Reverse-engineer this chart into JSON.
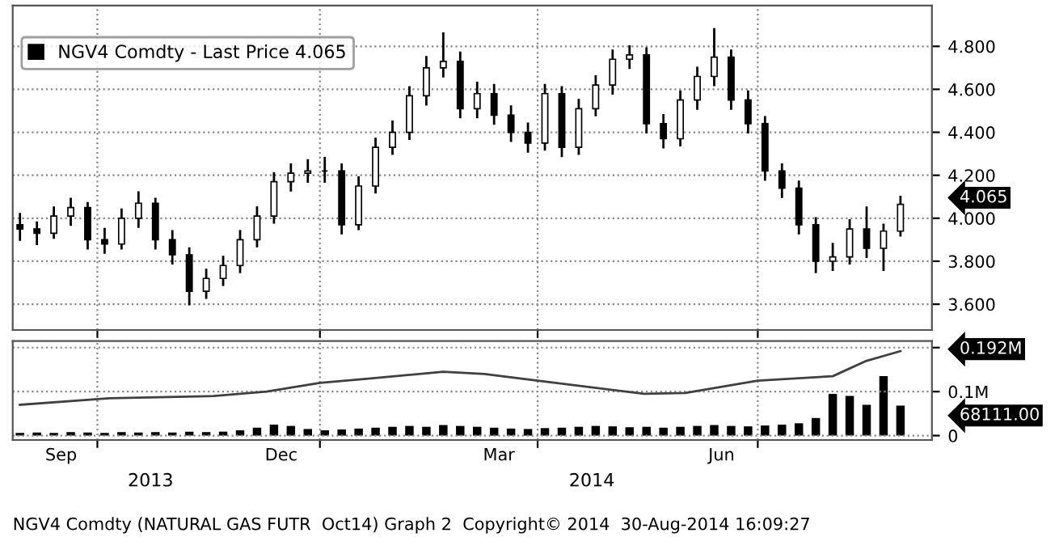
{
  "chart_data": [
    {
      "type": "candlestick",
      "legend": "top left",
      "grid": true,
      "tick_labels": "y",
      "x": [
        "2013-08-30",
        "2013-09-06",
        "2013-09-13",
        "2013-09-20",
        "2013-09-27",
        "2013-10-04",
        "2013-10-11",
        "2013-10-18",
        "2013-10-25",
        "2013-11-01",
        "2013-11-08",
        "2013-11-15",
        "2013-11-22",
        "2013-11-29",
        "2013-12-06",
        "2013-12-13",
        "2013-12-20",
        "2013-12-27",
        "2014-01-03",
        "2014-01-10",
        "2014-01-17",
        "2014-01-24",
        "2014-01-31",
        "2014-02-07",
        "2014-02-14",
        "2014-02-21",
        "2014-02-28",
        "2014-03-07",
        "2014-03-14",
        "2014-03-21",
        "2014-03-28",
        "2014-04-04",
        "2014-04-11",
        "2014-04-18",
        "2014-04-25",
        "2014-05-02",
        "2014-05-09",
        "2014-05-16",
        "2014-05-23",
        "2014-05-30",
        "2014-06-06",
        "2014-06-13",
        "2014-06-20",
        "2014-06-27",
        "2014-07-04",
        "2014-07-11",
        "2014-07-18",
        "2014-07-25",
        "2014-08-01",
        "2014-08-08",
        "2014-08-15",
        "2014-08-22",
        "2014-08-29"
      ],
      "series": [
        {
          "name": "NGV4 Comdty - Last Price 4.065",
          "color": "#000000",
          "ohlc": [
            [
              3.97,
              4.02,
              3.9,
              3.95
            ],
            [
              3.95,
              3.98,
              3.88,
              3.93
            ],
            [
              3.93,
              4.05,
              3.91,
              4.01
            ],
            [
              4.01,
              4.09,
              3.97,
              4.05
            ],
            [
              4.05,
              4.07,
              3.86,
              3.9
            ],
            [
              3.9,
              3.95,
              3.84,
              3.88
            ],
            [
              3.88,
              4.04,
              3.86,
              4.0
            ],
            [
              4.0,
              4.12,
              3.96,
              4.07
            ],
            [
              4.07,
              4.09,
              3.86,
              3.9
            ],
            [
              3.9,
              3.94,
              3.79,
              3.83
            ],
            [
              3.83,
              3.86,
              3.6,
              3.66
            ],
            [
              3.66,
              3.76,
              3.63,
              3.72
            ],
            [
              3.72,
              3.82,
              3.69,
              3.78
            ],
            [
              3.78,
              3.94,
              3.75,
              3.9
            ],
            [
              3.9,
              4.05,
              3.87,
              4.01
            ],
            [
              4.01,
              4.21,
              3.98,
              4.17
            ],
            [
              4.17,
              4.25,
              4.13,
              4.21
            ],
            [
              4.21,
              4.27,
              4.17,
              4.22
            ],
            [
              4.22,
              4.28,
              4.17,
              4.22
            ],
            [
              4.22,
              4.25,
              3.93,
              3.97
            ],
            [
              3.97,
              4.19,
              3.95,
              4.15
            ],
            [
              4.15,
              4.37,
              4.12,
              4.33
            ],
            [
              4.33,
              4.45,
              4.3,
              4.4
            ],
            [
              4.4,
              4.61,
              4.37,
              4.57
            ],
            [
              4.57,
              4.75,
              4.53,
              4.7
            ],
            [
              4.7,
              4.86,
              4.66,
              4.73
            ],
            [
              4.73,
              4.77,
              4.47,
              4.51
            ],
            [
              4.51,
              4.63,
              4.47,
              4.58
            ],
            [
              4.58,
              4.62,
              4.44,
              4.48
            ],
            [
              4.48,
              4.52,
              4.36,
              4.4
            ],
            [
              4.4,
              4.44,
              4.31,
              4.35
            ],
            [
              4.35,
              4.62,
              4.32,
              4.58
            ],
            [
              4.58,
              4.61,
              4.29,
              4.33
            ],
            [
              4.33,
              4.55,
              4.3,
              4.51
            ],
            [
              4.51,
              4.66,
              4.48,
              4.62
            ],
            [
              4.62,
              4.78,
              4.58,
              4.74
            ],
            [
              4.74,
              4.8,
              4.7,
              4.76
            ],
            [
              4.76,
              4.79,
              4.4,
              4.44
            ],
            [
              4.44,
              4.48,
              4.33,
              4.37
            ],
            [
              4.37,
              4.59,
              4.34,
              4.55
            ],
            [
              4.55,
              4.7,
              4.51,
              4.66
            ],
            [
              4.66,
              4.88,
              4.62,
              4.75
            ],
            [
              4.75,
              4.78,
              4.51,
              4.55
            ],
            [
              4.55,
              4.59,
              4.4,
              4.44
            ],
            [
              4.44,
              4.47,
              4.18,
              4.22
            ],
            [
              4.22,
              4.25,
              4.1,
              4.14
            ],
            [
              4.14,
              4.17,
              3.93,
              3.97
            ],
            [
              3.97,
              4.0,
              3.75,
              3.8
            ],
            [
              3.8,
              3.88,
              3.76,
              3.82
            ],
            [
              3.82,
              3.99,
              3.79,
              3.95
            ],
            [
              3.95,
              4.05,
              3.82,
              3.86
            ],
            [
              3.86,
              3.97,
              3.76,
              3.94
            ],
            [
              3.94,
              4.1,
              3.92,
              4.065
            ]
          ]
        }
      ],
      "xlim": [
        "2013-08-27",
        "2014-09-11"
      ],
      "xticks": [
        {
          "value": "2013-10-01",
          "label": null
        },
        {
          "value": "2014-01-01",
          "label": null
        },
        {
          "value": "2014-04-01",
          "label": null
        },
        {
          "value": "2014-07-01",
          "label": null
        }
      ],
      "ylim": [
        3.48,
        4.99
      ],
      "yticks": [
        {
          "value": 3.6,
          "label": "3.600"
        },
        {
          "value": 3.8,
          "label": "3.800"
        },
        {
          "value": 4.0,
          "label": "4.000"
        },
        {
          "value": 4.2,
          "label": "4.200"
        },
        {
          "value": 4.4,
          "label": "4.400"
        },
        {
          "value": 4.6,
          "label": "4.600"
        },
        {
          "value": 4.8,
          "label": "4.800"
        }
      ],
      "annotations": [
        "4.065"
      ]
    },
    {
      "type": "bar",
      "grid": true,
      "x": [
        "2013-08-30",
        "2013-09-06",
        "2013-09-13",
        "2013-09-20",
        "2013-09-27",
        "2013-10-04",
        "2013-10-11",
        "2013-10-18",
        "2013-10-25",
        "2013-11-01",
        "2013-11-08",
        "2013-11-15",
        "2013-11-22",
        "2013-11-29",
        "2013-12-06",
        "2013-12-13",
        "2013-12-20",
        "2013-12-27",
        "2014-01-03",
        "2014-01-10",
        "2014-01-17",
        "2014-01-24",
        "2014-01-31",
        "2014-02-07",
        "2014-02-14",
        "2014-02-21",
        "2014-02-28",
        "2014-03-07",
        "2014-03-14",
        "2014-03-21",
        "2014-03-28",
        "2014-04-04",
        "2014-04-11",
        "2014-04-18",
        "2014-04-25",
        "2014-05-02",
        "2014-05-09",
        "2014-05-16",
        "2014-05-23",
        "2014-05-30",
        "2014-06-06",
        "2014-06-13",
        "2014-06-20",
        "2014-06-27",
        "2014-07-04",
        "2014-07-11",
        "2014-07-18",
        "2014-07-25",
        "2014-08-01",
        "2014-08-08",
        "2014-08-15",
        "2014-08-22",
        "2014-08-29"
      ],
      "series": [
        {
          "color": "#000000",
          "values": [
            6000,
            7000,
            6000,
            8000,
            7000,
            6000,
            8000,
            7000,
            8000,
            7000,
            9000,
            8000,
            9000,
            12000,
            18000,
            25000,
            22000,
            15000,
            12000,
            14000,
            16000,
            18000,
            20000,
            22000,
            20000,
            24000,
            22000,
            20000,
            18000,
            16000,
            15000,
            17000,
            18000,
            20000,
            22000,
            21000,
            19000,
            20000,
            18000,
            20000,
            22000,
            24000,
            22000,
            21000,
            23000,
            25000,
            28000,
            40000,
            95000,
            90000,
            70000,
            135000,
            68111
          ]
        },
        {
          "type": "line",
          "color": "#404040",
          "x": [
            "2013-08-30",
            "2013-10-06",
            "2013-11-18",
            "2013-12-10",
            "2014-01-01",
            "2014-01-22",
            "2014-02-21",
            "2014-03-10",
            "2014-04-01",
            "2014-05-15",
            "2014-06-01",
            "2014-07-01",
            "2014-08-01",
            "2014-08-15",
            "2014-08-29"
          ],
          "values": [
            70000,
            85000,
            90000,
            100000,
            120000,
            130000,
            145000,
            140000,
            125000,
            95000,
            97000,
            125000,
            135000,
            170000,
            192000
          ]
        }
      ],
      "xlim": [
        "2013-08-27",
        "2014-09-11"
      ],
      "xticks": [
        {
          "value": "2013-10-01",
          "label": null
        },
        {
          "value": "2014-01-01",
          "label": null
        },
        {
          "value": "2014-04-01",
          "label": null
        },
        {
          "value": "2014-07-01",
          "label": null
        },
        {
          "value": "2013-09-16",
          "label": "Sep"
        },
        {
          "value": "2013-12-16",
          "label": "Dec"
        },
        {
          "value": "2014-03-16",
          "label": "Mar"
        },
        {
          "value": "2014-06-16",
          "label": "Jun"
        }
      ],
      "ylim": [
        -10000,
        215000
      ],
      "yticks": [
        0,
        {
          "value": 100000,
          "label": "0.1M"
        },
        {
          "value": 200000,
          "label": null
        }
      ],
      "annotations": [
        "0.192M",
        "68111.00",
        "2013",
        "2014",
        "NGV4 Comdty (NATURAL GAS FUTR  Oct14) Graph 2  Copyright© 2014  30-Aug-2014 16:09:27"
      ]
    }
  ]
}
